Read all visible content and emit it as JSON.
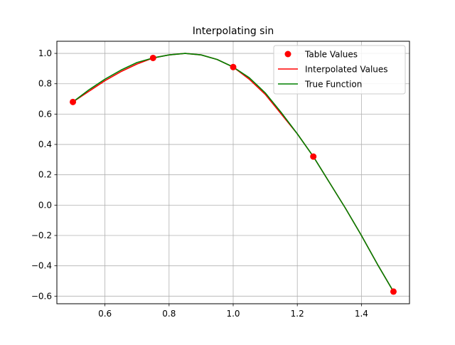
{
  "chart_data": {
    "type": "line",
    "title": "Interpolating sin",
    "xlabel": "",
    "ylabel": "",
    "xlim": [
      0.45,
      1.55
    ],
    "ylim": [
      -0.65,
      1.08
    ],
    "grid": true,
    "legend_position": "top-right",
    "x_ticks": [
      0.6,
      0.8,
      1.0,
      1.2,
      1.4
    ],
    "x_tick_labels": [
      "0.6",
      "0.8",
      "1.0",
      "1.2",
      "1.4"
    ],
    "y_ticks": [
      -0.6,
      -0.4,
      -0.2,
      0.0,
      0.2,
      0.4,
      0.6,
      0.8,
      1.0
    ],
    "y_tick_labels": [
      "−0.6",
      "−0.4",
      "−0.2",
      "0.0",
      "0.2",
      "0.4",
      "0.6",
      "0.8",
      "1.0"
    ],
    "series": [
      {
        "name": "Table Values",
        "kind": "scatter",
        "color": "#ff0000",
        "x": [
          0.5,
          0.75,
          1.0,
          1.25,
          1.5
        ],
        "y": [
          0.68,
          0.97,
          0.91,
          0.32,
          -0.57
        ]
      },
      {
        "name": "Interpolated Values",
        "kind": "line",
        "color": "#ff0000",
        "x": [
          0.5,
          0.55,
          0.6,
          0.65,
          0.7,
          0.75,
          0.8,
          0.85,
          0.9,
          0.95,
          1.0,
          1.05,
          1.1,
          1.15,
          1.2,
          1.25,
          1.3,
          1.35,
          1.4,
          1.45,
          1.5
        ],
        "y": [
          0.68,
          0.75,
          0.82,
          0.88,
          0.93,
          0.97,
          0.99,
          1.0,
          0.99,
          0.96,
          0.91,
          0.83,
          0.73,
          0.6,
          0.47,
          0.32,
          0.15,
          -0.02,
          -0.2,
          -0.39,
          -0.57
        ]
      },
      {
        "name": "True Function",
        "kind": "line",
        "color": "#008000",
        "x": [
          0.5,
          0.55,
          0.6,
          0.65,
          0.7,
          0.75,
          0.8,
          0.85,
          0.9,
          0.95,
          1.0,
          1.05,
          1.1,
          1.15,
          1.2,
          1.25,
          1.3,
          1.35,
          1.4,
          1.45,
          1.5
        ],
        "y": [
          0.68,
          0.76,
          0.83,
          0.89,
          0.94,
          0.97,
          0.99,
          1.0,
          0.99,
          0.96,
          0.91,
          0.84,
          0.74,
          0.61,
          0.47,
          0.32,
          0.15,
          -0.02,
          -0.2,
          -0.39,
          -0.57
        ]
      }
    ]
  }
}
